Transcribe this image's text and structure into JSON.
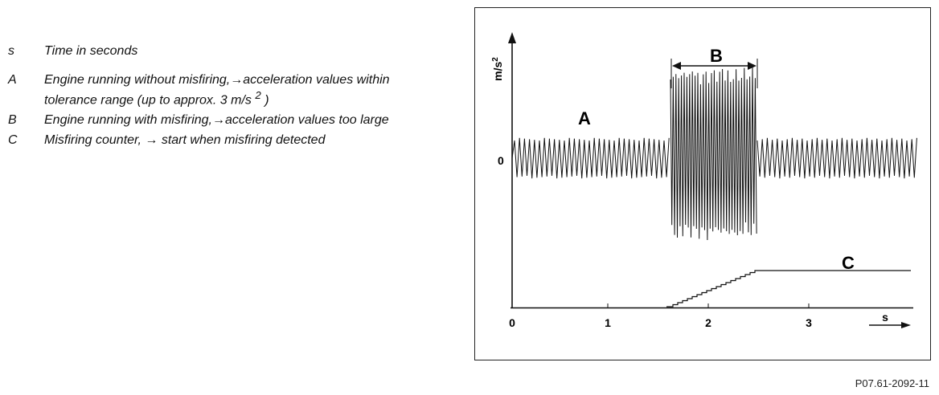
{
  "legend": {
    "s": {
      "key": "s",
      "text": "Time in seconds"
    },
    "a": {
      "key": "A",
      "line1": "Engine running without misfiring,→acceleration values within",
      "line2_pre": "tolerance range (up to approx. 3 m/s ",
      "line2_sup": "2",
      "line2_post": " )"
    },
    "b": {
      "key": "B",
      "text": "Engine running with misfiring,→acceleration values too large"
    },
    "c": {
      "key": "C",
      "text": "Misfiring counter, → start when misfiring detected"
    }
  },
  "diagram": {
    "y_axis_label": "m/s",
    "y_axis_label_sup": "2",
    "y_zero_label": "0",
    "x_axis_label": "s",
    "x_ticks": [
      "0",
      "1",
      "2",
      "3"
    ],
    "label_a": "A",
    "label_b": "B",
    "label_c": "C"
  },
  "figure_id": "P07.61-2092-11"
}
